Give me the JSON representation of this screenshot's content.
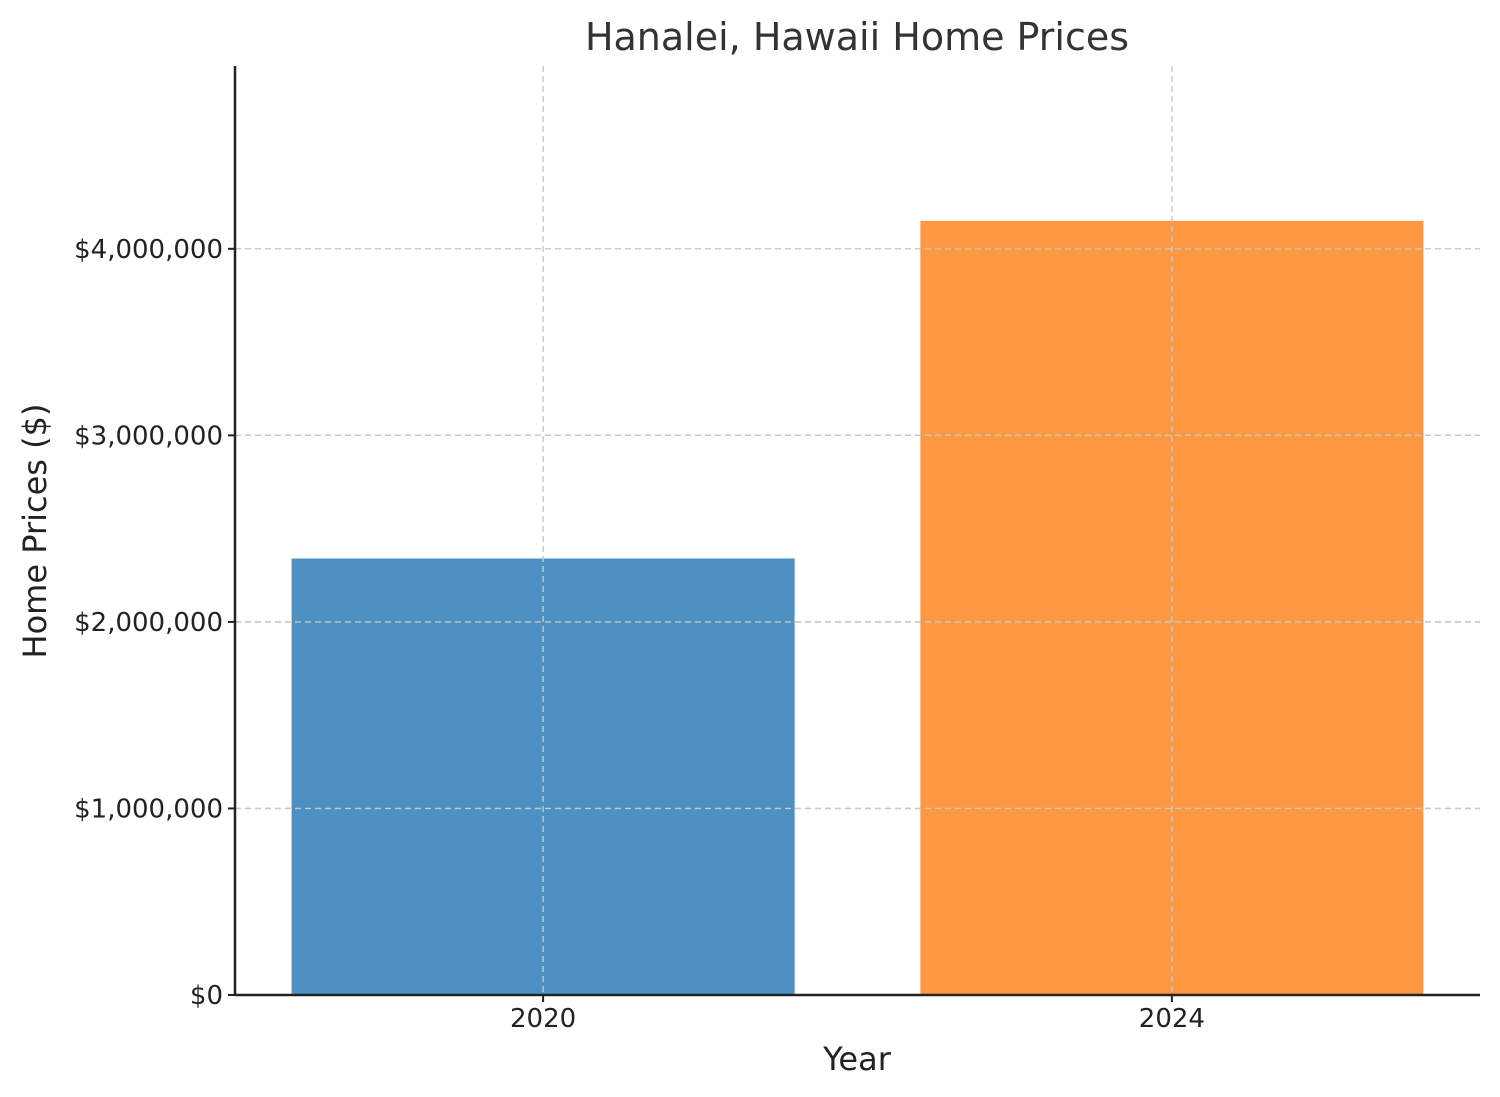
{
  "chart_data": {
    "type": "bar",
    "title": "Hanalei, Hawaii Home Prices",
    "xlabel": "Year",
    "ylabel": "Home Prices ($)",
    "categories": [
      "2020",
      "2024"
    ],
    "values": [
      2340000,
      4150000
    ],
    "colors": [
      "#4c91c2",
      "#ff9842"
    ],
    "ylim": [
      0,
      4980000
    ],
    "yticks": [
      {
        "value": 0,
        "label": "$0"
      },
      {
        "value": 1000000,
        "label": "$1,000,000"
      },
      {
        "value": 2000000,
        "label": "$2,000,000"
      },
      {
        "value": 3000000,
        "label": "$3,000,000"
      },
      {
        "value": 4000000,
        "label": "$4,000,000"
      }
    ],
    "grid": true,
    "legend": "none"
  }
}
